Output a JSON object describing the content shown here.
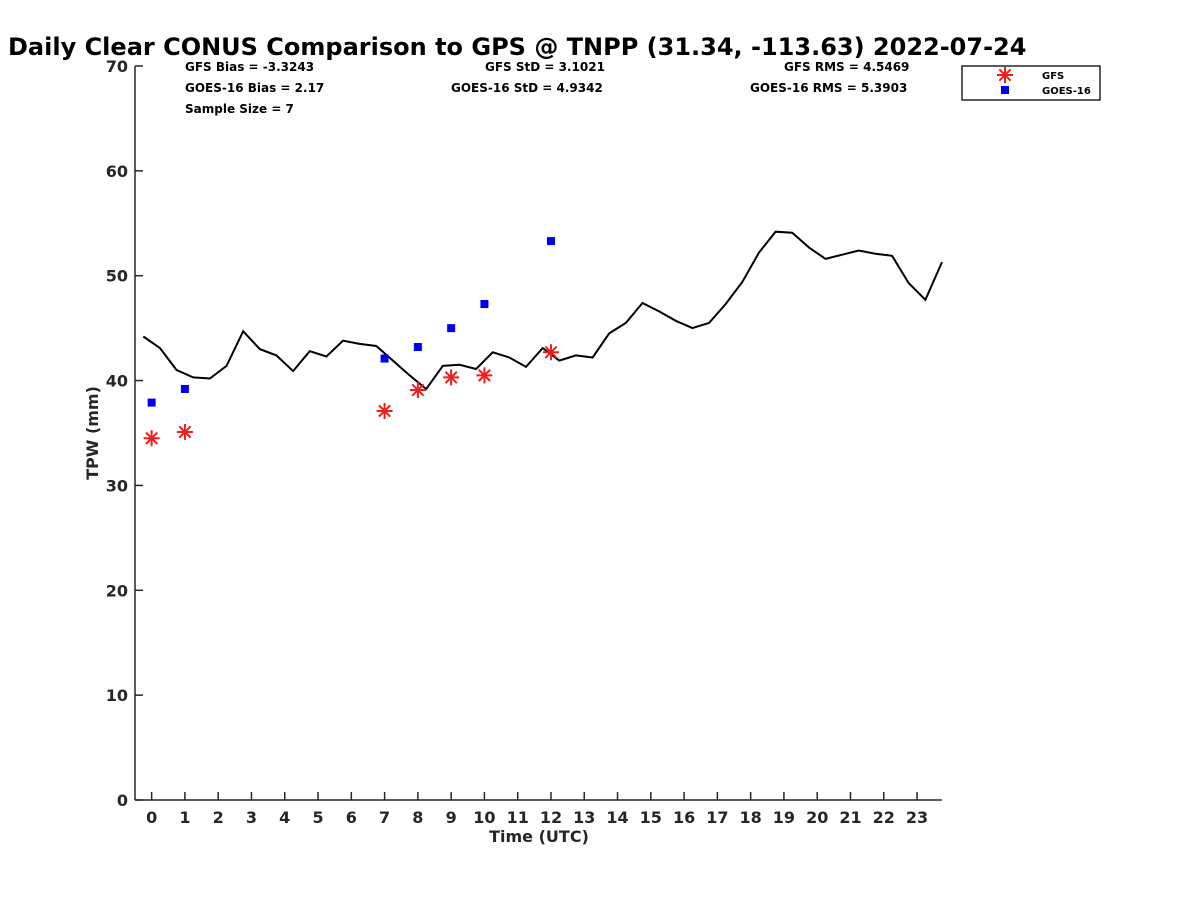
{
  "chart_data": {
    "type": "line",
    "title": "Daily Clear CONUS Comparison to GPS @ TNPP (31.34, -113.63) 2022-07-24",
    "xlabel": "Time (UTC)",
    "ylabel": "TPW (mm)",
    "xlim": [
      -0.5,
      23.75
    ],
    "ylim": [
      0,
      70
    ],
    "xticks": [
      "0",
      "1",
      "2",
      "3",
      "4",
      "5",
      "6",
      "7",
      "8",
      "9",
      "10",
      "11",
      "12",
      "13",
      "14",
      "15",
      "16",
      "17",
      "18",
      "19",
      "20",
      "21",
      "22",
      "23"
    ],
    "yticks": [
      "0",
      "10",
      "20",
      "30",
      "40",
      "50",
      "60",
      "70"
    ],
    "grid": false,
    "legend_position": "top-right",
    "stats": {
      "gfs_bias": "GFS Bias = -3.3243",
      "goes_bias": "GOES-16 Bias = 2.17",
      "sample_size": "Sample Size = 7",
      "gfs_std": "GFS StD = 3.1021",
      "goes_std": "GOES-16 StD = 4.9342",
      "gfs_rms": "GFS RMS = 4.5469",
      "goes_rms": "GOES-16 RMS = 5.3903"
    },
    "series": [
      {
        "name": "GFS",
        "marker": "asterisk",
        "color": "#ee1c1c",
        "x": [
          0,
          1,
          7,
          8,
          9,
          10,
          12
        ],
        "y": [
          34.5,
          35.1,
          37.1,
          39.1,
          40.3,
          40.5,
          42.7
        ]
      },
      {
        "name": "GOES-16",
        "marker": "square",
        "color": "#0000ee",
        "x": [
          0,
          1,
          7,
          8,
          9,
          10,
          12
        ],
        "y": [
          37.9,
          39.2,
          42.1,
          43.2,
          45.0,
          47.3,
          53.3
        ]
      },
      {
        "marker": "line",
        "color": "#000000",
        "x": [
          -0.25,
          0.25,
          0.75,
          1.25,
          1.75,
          2.25,
          2.75,
          3.25,
          3.75,
          4.25,
          4.75,
          5.25,
          5.75,
          6.25,
          6.75,
          7.25,
          7.75,
          8.25,
          8.75,
          9.25,
          9.75,
          10.25,
          10.75,
          11.25,
          11.75,
          12.25,
          12.75,
          13.25,
          13.75,
          14.25,
          14.75,
          15.25,
          15.75,
          16.25,
          16.75,
          17.25,
          17.75,
          18.25,
          18.75,
          19.25,
          19.75,
          20.25,
          20.75,
          21.25,
          21.75,
          22.25,
          22.75,
          23.25,
          23.75
        ],
        "y": [
          44.2,
          43.1,
          41.0,
          40.3,
          40.2,
          41.4,
          44.7,
          43.0,
          42.4,
          40.9,
          42.8,
          42.3,
          43.8,
          43.5,
          43.3,
          41.9,
          40.5,
          39.2,
          41.4,
          41.5,
          41.1,
          42.7,
          42.2,
          41.3,
          43.1,
          41.9,
          42.4,
          42.2,
          44.5,
          45.5,
          47.4,
          46.6,
          45.7,
          45.0,
          45.5,
          47.3,
          49.4,
          52.2,
          54.2,
          54.1,
          52.7,
          51.6,
          52.0,
          52.4,
          52.1,
          51.9,
          49.3,
          47.7,
          51.3
        ]
      }
    ]
  }
}
